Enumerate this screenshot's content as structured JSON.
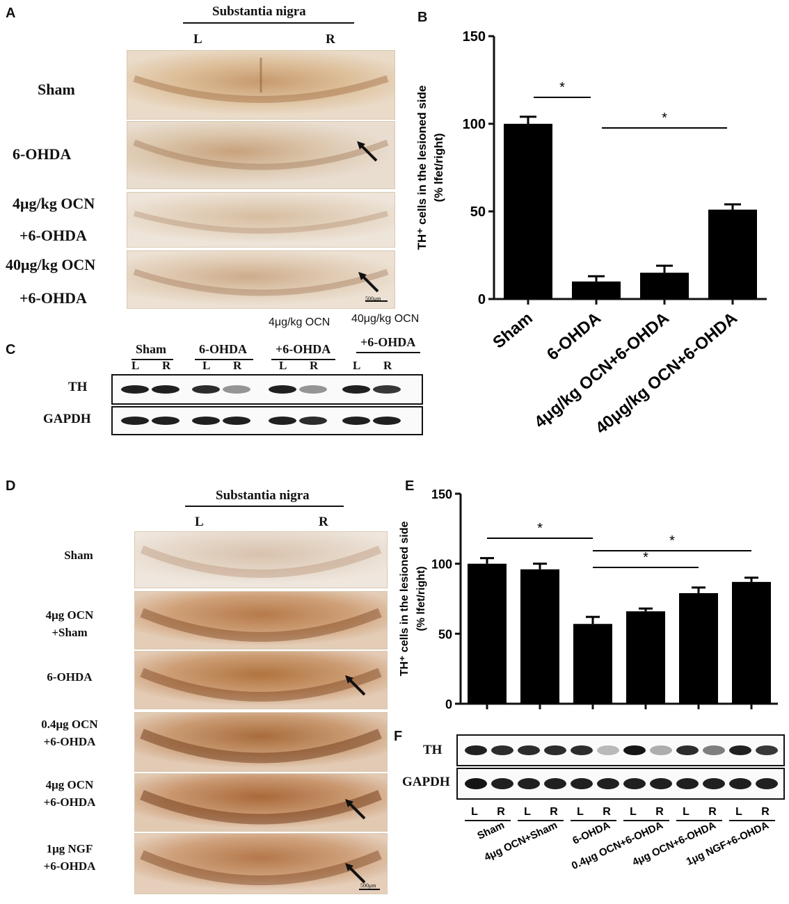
{
  "panels": {
    "a": "A",
    "b": "B",
    "c": "C",
    "d": "D",
    "e": "E",
    "f": "F"
  },
  "panel_a": {
    "header": "Substantia nigra",
    "left": "L",
    "right": "R",
    "rows": [
      "Sham",
      "6-OHDA",
      "4μg/kg OCN",
      "+6-OHDA",
      "40μg/kg OCN",
      "+6-OHDA"
    ],
    "scale": "500μm"
  },
  "panel_c": {
    "top1": "4μg/kg OCN",
    "top2": "40μg/kg OCN",
    "groups": [
      "Sham",
      "6-OHDA",
      "+6-OHDA",
      "+6-OHDA"
    ],
    "lanes": [
      "L",
      "R",
      "L",
      "R",
      "L",
      "R",
      "L",
      "R"
    ],
    "rows": [
      "TH",
      "GAPDH"
    ]
  },
  "panel_d": {
    "header": "Substantia nigra",
    "left": "L",
    "right": "R",
    "rows": [
      {
        "l1": "Sham",
        "l2": ""
      },
      {
        "l1": "4μg OCN",
        "l2": "+Sham"
      },
      {
        "l1": "6-OHDA",
        "l2": ""
      },
      {
        "l1": "0.4μg OCN",
        "l2": "+6-OHDA"
      },
      {
        "l1": "4μg OCN",
        "l2": "+6-OHDA"
      },
      {
        "l1": "1μg NGF",
        "l2": "+6-OHDA"
      }
    ],
    "scale": "500μm"
  },
  "panel_f": {
    "rows": [
      "TH",
      "GAPDH"
    ],
    "lanes": [
      "L",
      "R",
      "L",
      "R",
      "L",
      "R",
      "L",
      "R",
      "L",
      "R",
      "L",
      "R"
    ],
    "groups": [
      "Sham",
      "4μg OCN+Sham",
      "6-OHDA",
      "0.4μg OCN+6-OHDA",
      "4μg OCN+6-OHDA",
      "1μg NGF+6-OHDA"
    ]
  },
  "chart_data": [
    {
      "type": "bar",
      "panel": "B",
      "categories": [
        "Sham",
        "6-OHDA",
        "4μg/kg OCN+6-OHDA",
        "40μg/kg OCN+6-OHDA"
      ],
      "values": [
        100,
        10,
        15,
        51
      ],
      "errors": [
        4,
        3,
        4,
        3
      ],
      "ylabel": "TH⁺ cells in the lesioned side",
      "ylabel2": "(% lfet/right)",
      "ylim": [
        0,
        150
      ],
      "yticks": [
        0,
        50,
        100,
        150
      ],
      "significance": [
        {
          "from": 0,
          "to": 1,
          "label": "*"
        },
        {
          "from": 1,
          "to": 3,
          "label": "*"
        }
      ]
    },
    {
      "type": "bar",
      "panel": "E",
      "categories": [
        "Sham",
        "4μg OCN+Sham",
        "6-OHDA",
        "0.4μg OCN+6-OHDA",
        "4μg OCN+6-OHDA",
        "1μg NGF+6-OHDA"
      ],
      "values": [
        100,
        96,
        57,
        66,
        79,
        87
      ],
      "errors": [
        4,
        4,
        5,
        2,
        4,
        3
      ],
      "ylabel": "TH⁺ cells in the lesioned side",
      "ylabel2": "(% lfet/right)",
      "ylim": [
        0,
        150
      ],
      "yticks": [
        0,
        50,
        100,
        150
      ],
      "significance": [
        {
          "from": 0,
          "to": 2,
          "label": "*"
        },
        {
          "from": 2,
          "to": 4,
          "label": "*"
        },
        {
          "from": 2,
          "to": 5,
          "label": "*"
        }
      ]
    }
  ],
  "blot_intensity": {
    "c_th": [
      0.95,
      0.95,
      0.9,
      0.45,
      0.95,
      0.45,
      0.95,
      0.85
    ],
    "c_gapdh": [
      0.95,
      0.95,
      0.95,
      0.95,
      0.95,
      0.9,
      0.95,
      0.95
    ],
    "f_th": [
      0.95,
      0.9,
      0.9,
      0.9,
      0.9,
      0.3,
      1.0,
      0.35,
      0.9,
      0.55,
      0.95,
      0.85
    ],
    "f_gapdh": [
      1.0,
      0.95,
      0.95,
      0.95,
      0.95,
      0.95,
      0.95,
      0.95,
      0.95,
      0.95,
      0.95,
      0.95
    ]
  }
}
